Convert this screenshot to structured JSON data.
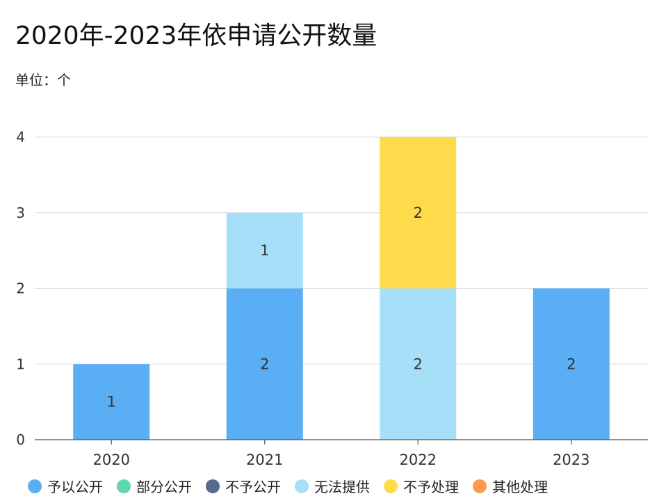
{
  "title": "2020年-2023年依申请公开数量",
  "unit_label": "单位：个",
  "chart_data": {
    "type": "bar",
    "stacked": true,
    "title": "2020年-2023年依申请公开数量",
    "categories": [
      "2020",
      "2021",
      "2022",
      "2023"
    ],
    "series": [
      {
        "name": "予以公开",
        "color": "#5aaef4",
        "values": [
          1,
          2,
          0,
          2
        ]
      },
      {
        "name": "部分公开",
        "color": "#5fd6b0",
        "values": [
          0,
          0,
          0,
          0
        ]
      },
      {
        "name": "不予公开",
        "color": "#56698f",
        "values": [
          0,
          0,
          0,
          0
        ]
      },
      {
        "name": "无法提供",
        "color": "#a8dff8",
        "values": [
          0,
          1,
          2,
          0
        ]
      },
      {
        "name": "不予处理",
        "color": "#fedb4a",
        "values": [
          0,
          0,
          2,
          0
        ]
      },
      {
        "name": "其他处理",
        "color": "#fd9a4d",
        "values": [
          0,
          0,
          0,
          0
        ]
      }
    ],
    "ylim": [
      0,
      4
    ],
    "yticks": [
      0,
      1,
      2,
      3,
      4
    ],
    "grid": true,
    "legend_position": "bottom"
  }
}
